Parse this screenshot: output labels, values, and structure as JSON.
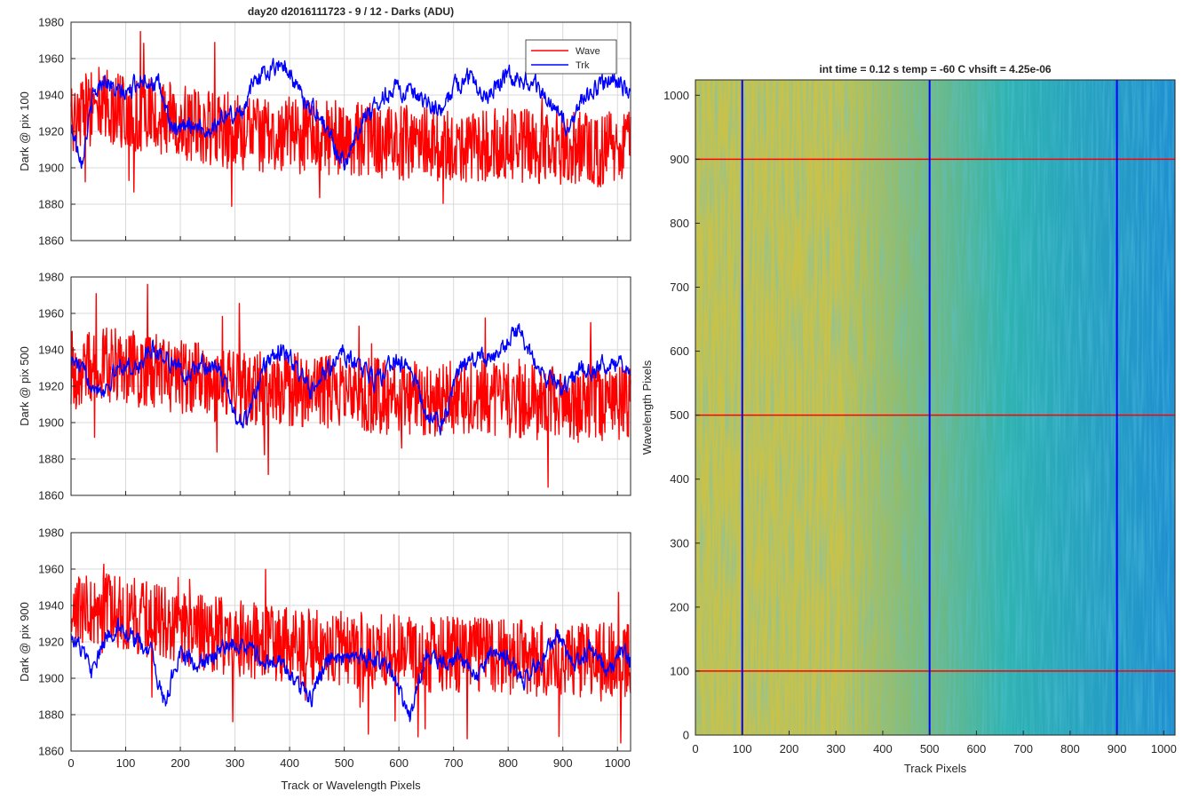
{
  "figure": {
    "line_plots_title": "day20 d2016111723 - 9 / 12 - Darks (ADU)",
    "image_title": "int time = 0.12 s    temp = -60 C    vhsift = 4.25e-06"
  },
  "colors": {
    "wave": "#ff0000",
    "trk": "#0000ff",
    "grid": "#d9d9d9",
    "axis": "#262626",
    "heatmap_low": "#1f8fd1",
    "heatmap_mid": "#2fb3b0",
    "heatmap_high": "#c8c24a"
  },
  "chart_data": [
    {
      "type": "line",
      "title": "day20 d2016111723 - 9 / 12 - Darks (ADU)",
      "xlabel": "",
      "ylabel": "Dark @ pix 100",
      "xlim": [
        0,
        1024
      ],
      "ylim": [
        1860,
        1980
      ],
      "xticks": [
        0,
        100,
        200,
        300,
        400,
        500,
        600,
        700,
        800,
        900,
        1000
      ],
      "xtick_labels_visible": false,
      "yticks": [
        1860,
        1880,
        1900,
        1920,
        1940,
        1960,
        1980
      ],
      "grid": true,
      "legend": {
        "entries": [
          "Wave",
          "Trk"
        ],
        "placement": "top-right"
      },
      "series": [
        {
          "name": "Wave",
          "color": "#ff0000",
          "noise_amplitude": 15,
          "x": [
            0,
            50,
            100,
            150,
            200,
            250,
            300,
            350,
            400,
            450,
            500,
            550,
            600,
            650,
            700,
            750,
            800,
            850,
            900,
            950,
            1000,
            1024
          ],
          "y": [
            1928,
            1935,
            1930,
            1928,
            1925,
            1922,
            1920,
            1918,
            1918,
            1917,
            1916,
            1915,
            1914,
            1913,
            1913,
            1913,
            1912,
            1911,
            1910,
            1910,
            1910,
            1910
          ]
        },
        {
          "name": "Trk",
          "color": "#0000ff",
          "noise_amplitude": 4,
          "x": [
            0,
            20,
            40,
            60,
            80,
            100,
            130,
            160,
            190,
            220,
            250,
            280,
            310,
            340,
            370,
            390,
            420,
            450,
            470,
            500,
            530,
            560,
            590,
            620,
            650,
            680,
            700,
            730,
            760,
            790,
            820,
            850,
            880,
            910,
            940,
            970,
            1000,
            1024
          ],
          "y": [
            1922,
            1905,
            1938,
            1950,
            1942,
            1940,
            1950,
            1945,
            1918,
            1925,
            1920,
            1928,
            1930,
            1950,
            1955,
            1958,
            1940,
            1930,
            1920,
            1902,
            1925,
            1935,
            1945,
            1940,
            1935,
            1930,
            1945,
            1950,
            1940,
            1950,
            1950,
            1945,
            1935,
            1920,
            1940,
            1945,
            1948,
            1940
          ]
        }
      ]
    },
    {
      "type": "line",
      "title": "",
      "xlabel": "",
      "ylabel": "Dark @ pix 500",
      "xlim": [
        0,
        1024
      ],
      "ylim": [
        1860,
        1980
      ],
      "xticks": [
        0,
        100,
        200,
        300,
        400,
        500,
        600,
        700,
        800,
        900,
        1000
      ],
      "xtick_labels_visible": false,
      "yticks": [
        1860,
        1880,
        1900,
        1920,
        1940,
        1960,
        1980
      ],
      "grid": true,
      "series": [
        {
          "name": "Wave",
          "color": "#ff0000",
          "noise_amplitude": 15,
          "x": [
            0,
            50,
            100,
            150,
            200,
            250,
            300,
            350,
            400,
            450,
            500,
            550,
            600,
            650,
            700,
            750,
            800,
            850,
            900,
            950,
            1000,
            1024
          ],
          "y": [
            1930,
            1932,
            1930,
            1928,
            1925,
            1922,
            1920,
            1918,
            1918,
            1917,
            1916,
            1915,
            1914,
            1913,
            1913,
            1913,
            1912,
            1911,
            1910,
            1910,
            1910,
            1910
          ]
        },
        {
          "name": "Trk",
          "color": "#0000ff",
          "noise_amplitude": 4,
          "x": [
            0,
            30,
            60,
            90,
            120,
            150,
            180,
            210,
            240,
            270,
            300,
            320,
            350,
            380,
            410,
            440,
            470,
            500,
            530,
            560,
            590,
            620,
            650,
            680,
            710,
            740,
            770,
            800,
            820,
            840,
            870,
            900,
            930,
            960,
            990,
            1024
          ],
          "y": [
            1935,
            1925,
            1918,
            1932,
            1930,
            1940,
            1935,
            1925,
            1932,
            1930,
            1905,
            1900,
            1928,
            1940,
            1932,
            1915,
            1930,
            1938,
            1930,
            1922,
            1935,
            1930,
            1905,
            1898,
            1930,
            1935,
            1935,
            1945,
            1950,
            1940,
            1925,
            1918,
            1930,
            1928,
            1935,
            1930
          ]
        }
      ]
    },
    {
      "type": "line",
      "title": "",
      "xlabel": "Track or Wavelength Pixels",
      "ylabel": "Dark @ pix 900",
      "xlim": [
        0,
        1024
      ],
      "ylim": [
        1860,
        1980
      ],
      "xticks": [
        0,
        100,
        200,
        300,
        400,
        500,
        600,
        700,
        800,
        900,
        1000
      ],
      "xtick_labels_visible": true,
      "yticks": [
        1860,
        1880,
        1900,
        1920,
        1940,
        1960,
        1980
      ],
      "grid": true,
      "series": [
        {
          "name": "Wave",
          "color": "#ff0000",
          "noise_amplitude": 15,
          "x": [
            0,
            50,
            100,
            150,
            200,
            250,
            300,
            350,
            400,
            450,
            500,
            550,
            600,
            650,
            700,
            750,
            800,
            850,
            900,
            950,
            1000,
            1024
          ],
          "y": [
            1935,
            1937,
            1935,
            1932,
            1928,
            1925,
            1922,
            1920,
            1918,
            1917,
            1916,
            1915,
            1914,
            1913,
            1913,
            1912,
            1912,
            1911,
            1910,
            1910,
            1910,
            1910
          ]
        },
        {
          "name": "Trk",
          "color": "#0000ff",
          "noise_amplitude": 4,
          "x": [
            0,
            20,
            40,
            60,
            90,
            120,
            150,
            170,
            200,
            230,
            260,
            290,
            320,
            350,
            380,
            410,
            440,
            470,
            500,
            530,
            560,
            580,
            600,
            620,
            650,
            680,
            710,
            740,
            770,
            800,
            830,
            860,
            890,
            920,
            950,
            980,
            1010,
            1024
          ],
          "y": [
            1925,
            1915,
            1902,
            1920,
            1930,
            1920,
            1912,
            1885,
            1915,
            1905,
            1912,
            1920,
            1918,
            1910,
            1910,
            1898,
            1890,
            1912,
            1908,
            1912,
            1910,
            1908,
            1895,
            1878,
            1912,
            1910,
            1912,
            1900,
            1915,
            1910,
            1900,
            1908,
            1925,
            1905,
            1918,
            1905,
            1915,
            1910
          ]
        }
      ]
    },
    {
      "type": "heatmap",
      "title": "int time = 0.12 s    temp = -60 C    vhsift = 4.25e-06",
      "xlabel": "Track Pixels",
      "ylabel": "Wavelength Pixels",
      "xlim": [
        0,
        1024
      ],
      "ylim": [
        0,
        1024
      ],
      "xticks": [
        0,
        100,
        200,
        300,
        400,
        500,
        600,
        700,
        800,
        900,
        1000
      ],
      "yticks": [
        0,
        100,
        200,
        300,
        400,
        500,
        600,
        700,
        800,
        900,
        1000
      ],
      "colormap": "parula",
      "value_trend": "high (yellow-green) near track 0-200, lower (blue-teal) toward track 1024",
      "marker_lines": {
        "vertical_track_pixels": [
          100,
          500,
          900
        ],
        "vertical_color": "#0000ff",
        "horizontal_wavelength_pixels": [
          100,
          500,
          900
        ],
        "horizontal_color": "#ff0000"
      }
    }
  ]
}
